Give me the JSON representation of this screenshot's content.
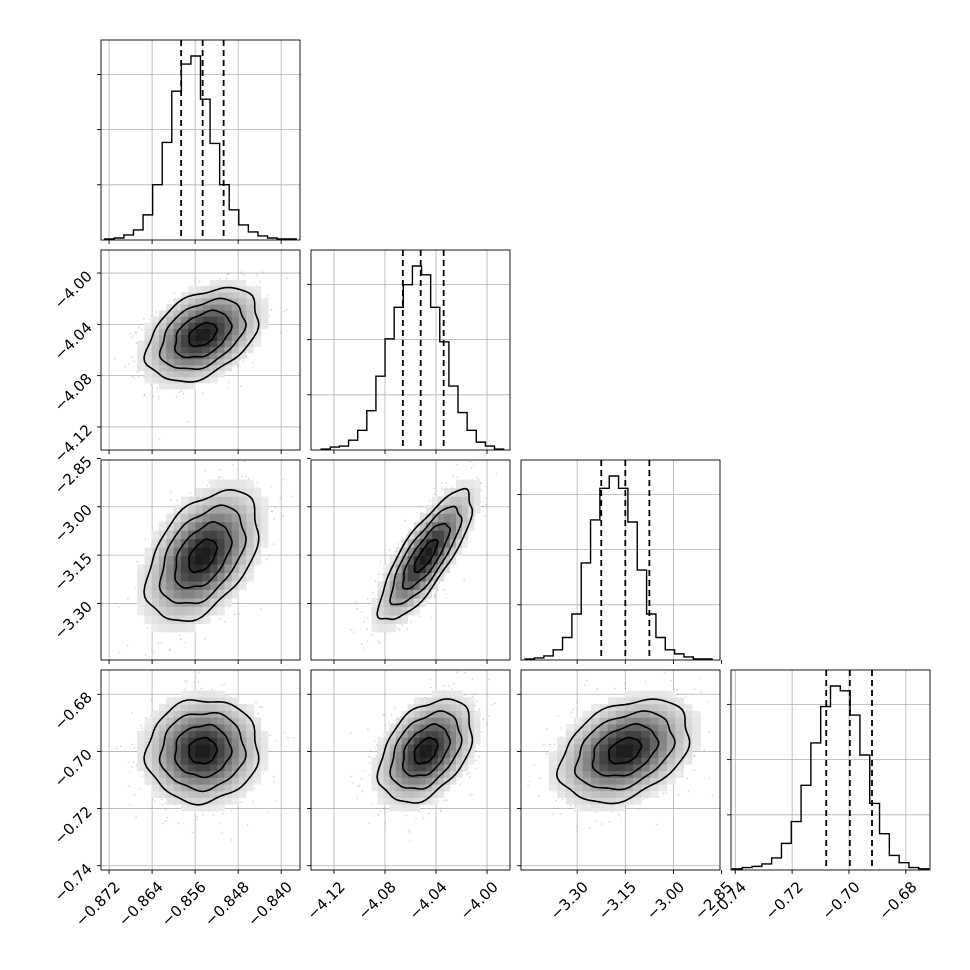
{
  "chart_data": {
    "type": "corner",
    "parameters": 4,
    "grid": true,
    "colors": {
      "line": "#000000",
      "grid": "#b0b0b0",
      "points": "#9a9a9a",
      "density_dark": "#000000",
      "density_light": "#ffffff"
    },
    "params": [
      {
        "id": "p1",
        "range": [
          -0.8735,
          -0.8365
        ],
        "ticks": [
          -0.872,
          -0.864,
          -0.856,
          -0.848,
          -0.84
        ],
        "tick_labels": [
          "−0.872",
          "−0.864",
          "−0.856",
          "−0.848",
          "−0.840"
        ],
        "hist_range": [
          -0.8728,
          -0.8372
        ],
        "hist_counts": [
          1,
          2,
          5,
          10,
          25,
          55,
          97,
          148,
          175,
          183,
          140,
          96,
          55,
          30,
          15,
          8,
          4,
          2,
          1,
          1
        ],
        "quantiles": [
          -0.8586,
          -0.8546,
          -0.8507
        ]
      },
      {
        "id": "p2",
        "range": [
          -4.138,
          -3.982
        ],
        "ticks": [
          -4.12,
          -4.08,
          -4.04,
          -4.0
        ],
        "tick_labels": [
          "−4.12",
          "−4.08",
          "−4.04",
          "−4.00"
        ],
        "hist_range": [
          -4.13,
          -3.987
        ],
        "hist_counts": [
          1,
          3,
          4,
          10,
          20,
          40,
          75,
          113,
          145,
          168,
          187,
          178,
          145,
          110,
          65,
          38,
          20,
          8,
          4,
          1
        ],
        "quantiles": [
          -4.066,
          -4.052,
          -4.034
        ]
      },
      {
        "id": "p3",
        "range": [
          -3.475,
          -2.855
        ],
        "ticks": [
          -3.3,
          -3.15,
          -3.0,
          -2.85
        ],
        "tick_labels": [
          "−3.30",
          "−3.15",
          "−3.00",
          "−2.85"
        ],
        "hist_range": [
          -3.462,
          -2.88
        ],
        "hist_counts": [
          1,
          2,
          4,
          10,
          22,
          45,
          95,
          137,
          168,
          180,
          168,
          135,
          88,
          45,
          22,
          10,
          6,
          3,
          1,
          1
        ],
        "quantiles": [
          -3.225,
          -3.15,
          -3.075
        ]
      },
      {
        "id": "p4",
        "range": [
          -0.7415,
          -0.6715
        ],
        "ticks": [
          -0.74,
          -0.72,
          -0.7,
          -0.68
        ],
        "tick_labels": [
          "−0.74",
          "−0.72",
          "−0.70",
          "−0.68"
        ],
        "hist_range": [
          -0.741,
          -0.672
        ],
        "hist_counts": [
          1,
          2,
          3,
          5,
          10,
          22,
          40,
          70,
          105,
          135,
          152,
          148,
          128,
          95,
          55,
          30,
          12,
          6,
          2,
          1
        ],
        "quantiles": [
          -0.708,
          -0.6997,
          -0.6919
        ]
      }
    ],
    "pairs": [
      {
        "x": "p1",
        "y": "p2",
        "mean": [
          -0.8546,
          -4.048
        ],
        "sd": [
          0.0052,
          0.0182
        ],
        "corr": 0.4
      },
      {
        "x": "p1",
        "y": "p3",
        "mean": [
          -0.8546,
          -3.152
        ],
        "sd": [
          0.0052,
          0.101
        ],
        "corr": 0.45
      },
      {
        "x": "p2",
        "y": "p3",
        "mean": [
          -4.048,
          -3.152
        ],
        "sd": [
          0.0182,
          0.101
        ],
        "corr": 0.8
      },
      {
        "x": "p1",
        "y": "p4",
        "mean": [
          -0.8546,
          -0.6998
        ],
        "sd": [
          0.0052,
          0.009
        ],
        "corr": 0.05
      },
      {
        "x": "p2",
        "y": "p4",
        "mean": [
          -4.048,
          -0.6998
        ],
        "sd": [
          0.0182,
          0.009
        ],
        "corr": 0.4
      },
      {
        "x": "p3",
        "y": "p4",
        "mean": [
          -3.152,
          -0.6998
        ],
        "sd": [
          0.101,
          0.009
        ],
        "corr": 0.35
      }
    ]
  }
}
